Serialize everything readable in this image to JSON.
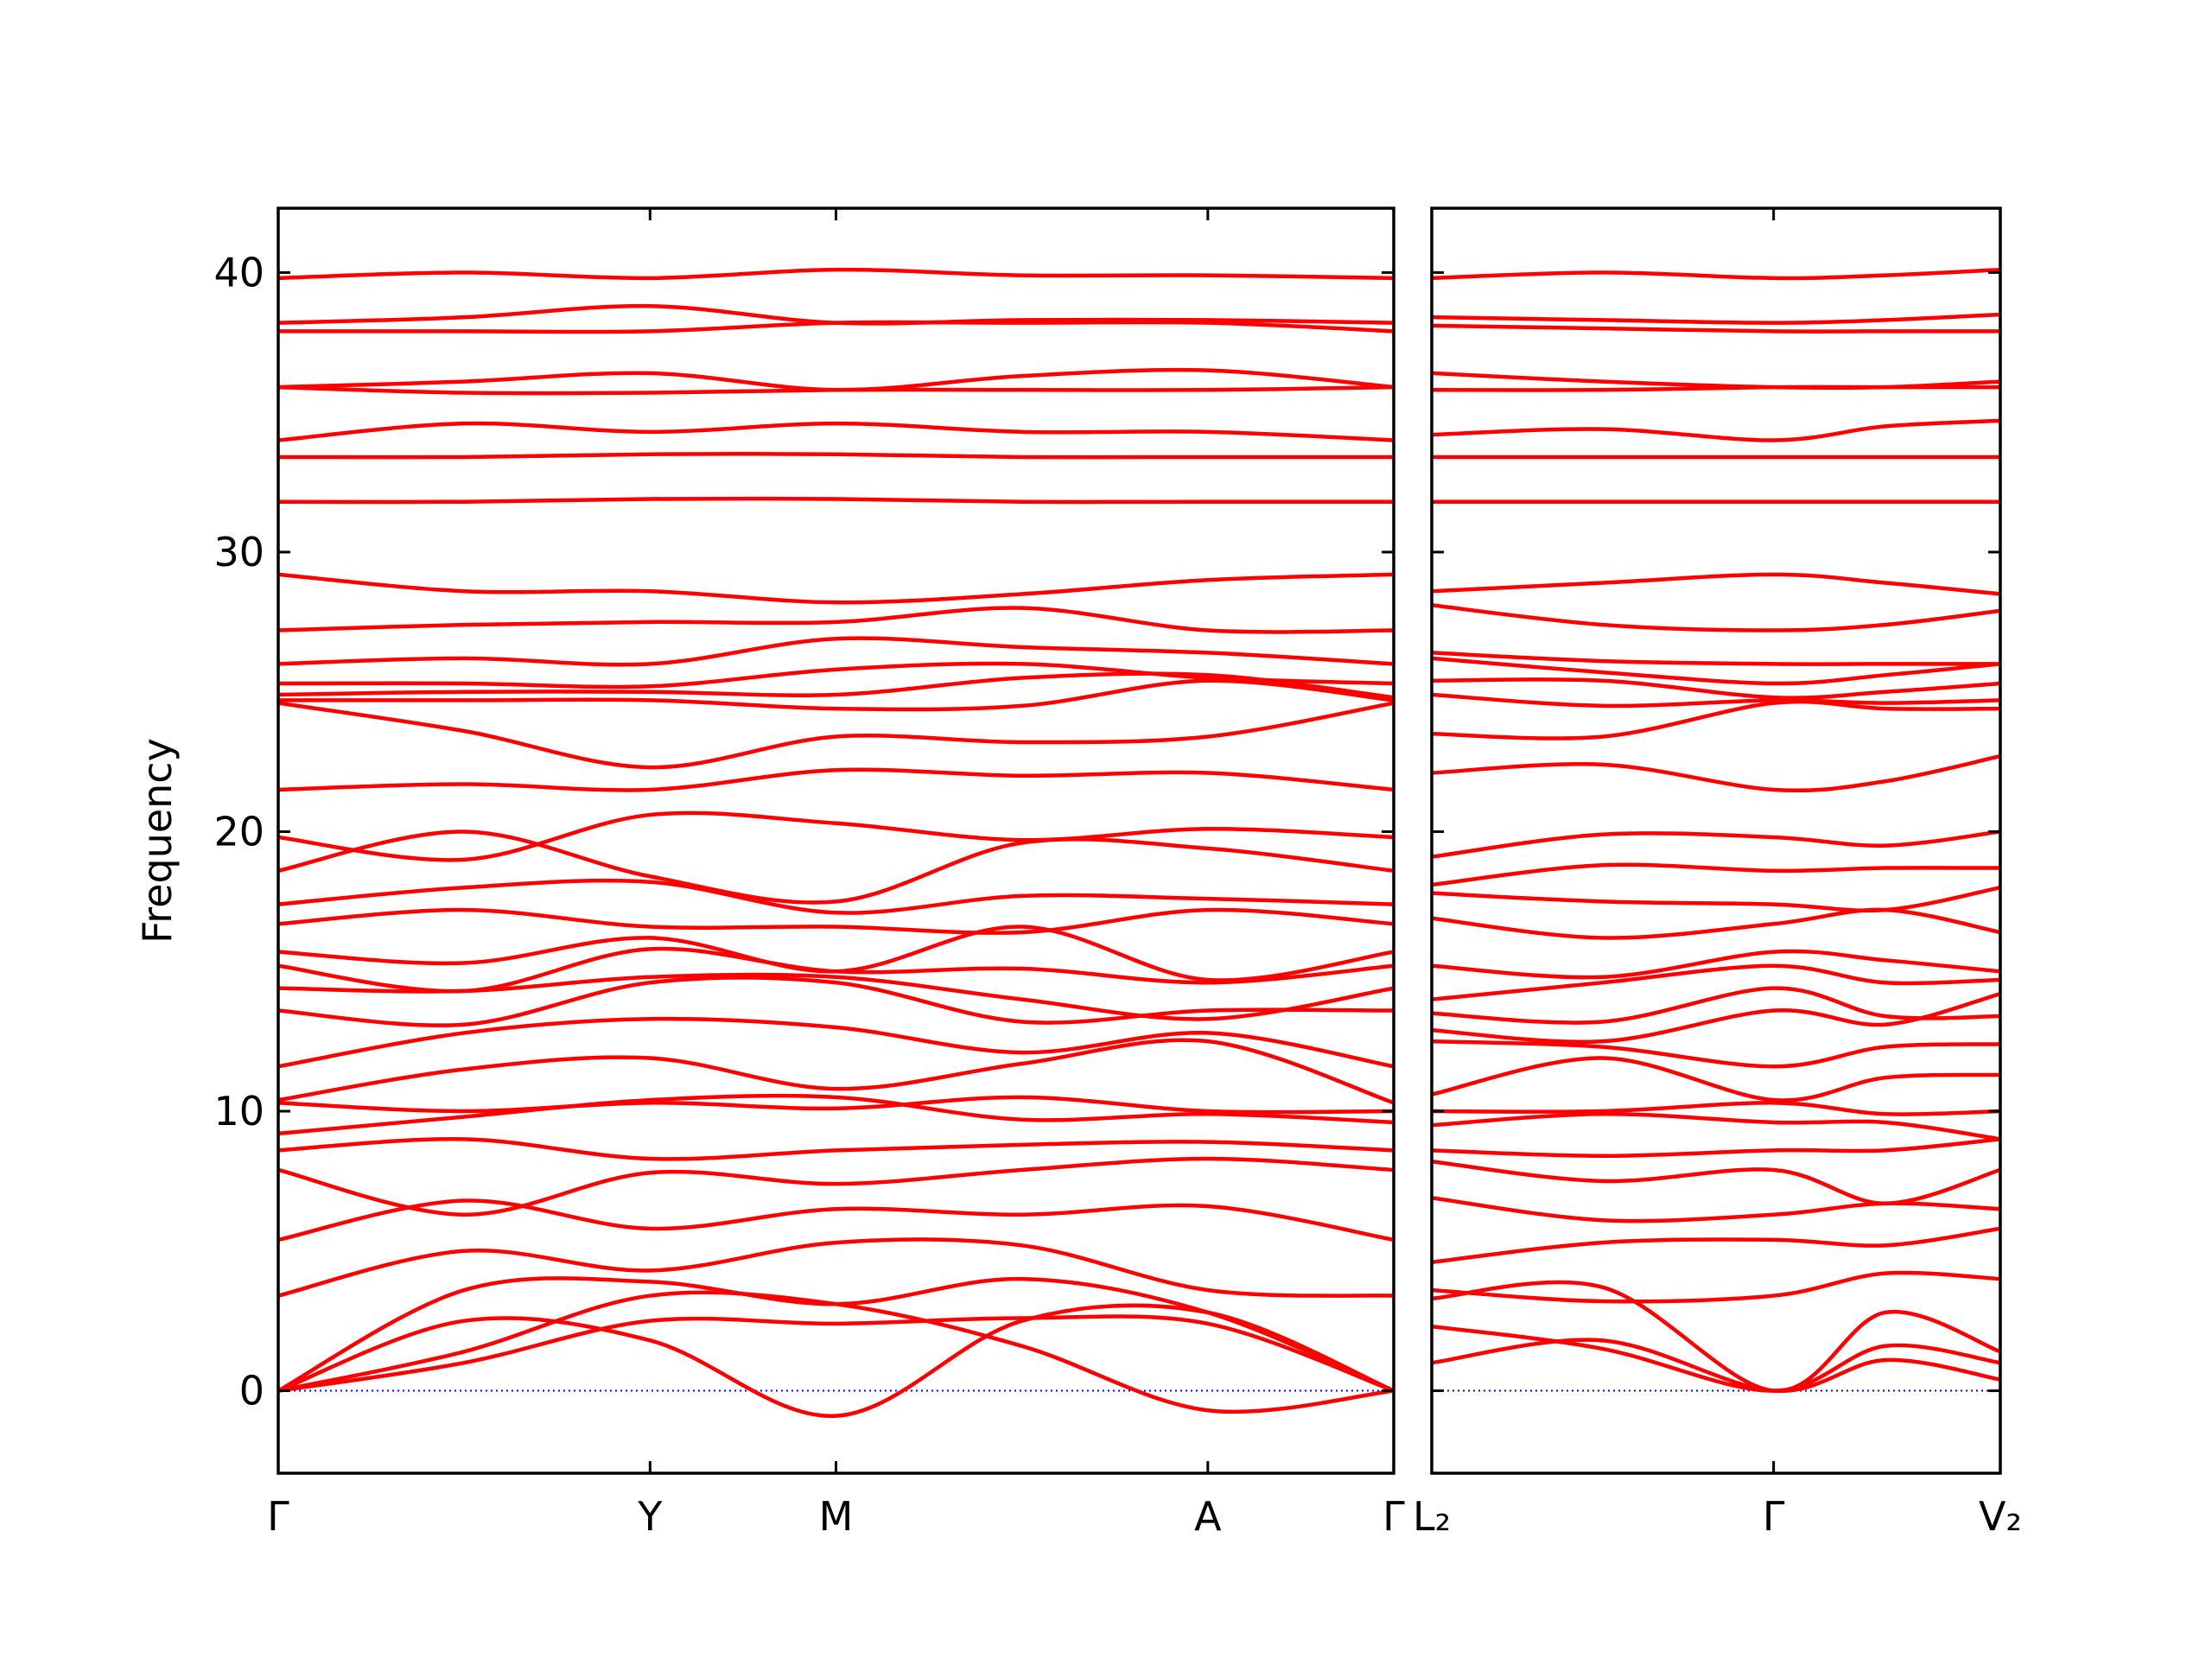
{
  "chart_data": [
    {
      "type": "line",
      "ylabel": "Frequency",
      "color": "#ff0000",
      "ylim": [
        -2.95,
        42.3
      ],
      "yticks": [
        0,
        10,
        20,
        30,
        40
      ],
      "xlim": [
        0,
        3
      ],
      "xticks": [
        {
          "value": 0,
          "label": "Γ"
        },
        {
          "value": 1,
          "label": "Y"
        },
        {
          "value": 1.5,
          "label": "M"
        },
        {
          "value": 2.5,
          "label": "A"
        },
        {
          "value": 3,
          "label": "Γ"
        }
      ],
      "reference_line": {
        "value": 0,
        "color": "#0000ff"
      },
      "x": [
        0,
        0.5,
        1,
        1.5,
        2,
        2.5,
        3
      ],
      "series": [
        {
          "values": [
            39.8,
            40.0,
            39.8,
            40.1,
            39.9,
            39.9,
            39.8
          ]
        },
        {
          "values": [
            38.2,
            38.4,
            38.8,
            38.2,
            38.3,
            38.3,
            38.2
          ]
        },
        {
          "values": [
            37.9,
            37.9,
            37.9,
            38.2,
            38.2,
            38.2,
            37.9
          ]
        },
        {
          "values": [
            35.9,
            36.1,
            36.4,
            35.8,
            36.3,
            36.5,
            35.9
          ]
        },
        {
          "values": [
            35.9,
            35.7,
            35.7,
            35.8,
            35.8,
            35.8,
            35.9
          ]
        },
        {
          "values": [
            34.0,
            34.6,
            34.3,
            34.6,
            34.3,
            34.3,
            34.0
          ]
        },
        {
          "values": [
            33.4,
            33.4,
            33.5,
            33.5,
            33.4,
            33.4,
            33.4
          ]
        },
        {
          "values": [
            31.8,
            31.8,
            31.9,
            31.9,
            31.8,
            31.8,
            31.8
          ]
        },
        {
          "values": [
            29.2,
            28.6,
            28.6,
            28.2,
            28.5,
            29.0,
            29.2
          ]
        },
        {
          "values": [
            27.2,
            27.4,
            27.5,
            27.5,
            28.0,
            27.2,
            27.2
          ]
        },
        {
          "values": [
            26.0,
            26.2,
            26.0,
            26.9,
            26.6,
            26.4,
            26.0
          ]
        },
        {
          "values": [
            25.3,
            25.3,
            25.2,
            25.8,
            26.0,
            25.5,
            25.3
          ]
        },
        {
          "values": [
            24.9,
            25.0,
            25.0,
            24.9,
            25.5,
            25.6,
            24.8
          ]
        },
        {
          "values": [
            24.7,
            24.7,
            24.7,
            24.4,
            24.5,
            25.4,
            24.7
          ]
        },
        {
          "values": [
            24.6,
            23.6,
            22.3,
            23.4,
            23.2,
            23.4,
            24.6
          ]
        },
        {
          "values": [
            21.5,
            21.7,
            21.5,
            22.2,
            22.0,
            22.1,
            21.5
          ]
        },
        {
          "values": [
            19.8,
            19.0,
            20.6,
            20.3,
            19.7,
            20.1,
            19.8
          ]
        },
        {
          "values": [
            18.6,
            20.0,
            18.4,
            17.5,
            19.6,
            19.4,
            18.6
          ]
        },
        {
          "values": [
            17.4,
            18.0,
            18.2,
            17.1,
            17.7,
            17.6,
            17.4
          ]
        },
        {
          "values": [
            16.7,
            17.2,
            16.6,
            16.6,
            16.4,
            17.2,
            16.7
          ]
        },
        {
          "values": [
            15.7,
            15.3,
            16.2,
            15.0,
            16.6,
            14.7,
            15.7
          ]
        },
        {
          "values": [
            15.2,
            14.3,
            15.8,
            15.0,
            15.1,
            14.6,
            15.2
          ]
        },
        {
          "values": [
            14.4,
            14.3,
            14.8,
            14.8,
            14.0,
            13.3,
            14.4
          ]
        },
        {
          "values": [
            13.6,
            13.1,
            14.6,
            14.6,
            13.2,
            13.6,
            13.6
          ]
        },
        {
          "values": [
            11.6,
            12.8,
            13.3,
            13.0,
            12.1,
            12.8,
            11.6
          ]
        },
        {
          "values": [
            10.4,
            11.5,
            11.9,
            10.8,
            11.7,
            12.5,
            10.3
          ]
        },
        {
          "values": [
            10.3,
            10.0,
            10.3,
            10.1,
            10.5,
            10.0,
            10.0
          ]
        },
        {
          "values": [
            9.2,
            9.8,
            10.4,
            10.5,
            9.7,
            9.9,
            9.6
          ]
        },
        {
          "values": [
            8.6,
            9.0,
            8.3,
            8.6,
            8.8,
            8.9,
            8.6
          ]
        },
        {
          "values": [
            7.9,
            6.3,
            7.8,
            7.4,
            7.9,
            8.3,
            7.9
          ]
        },
        {
          "values": [
            5.4,
            6.8,
            5.8,
            6.5,
            6.3,
            6.6,
            5.4
          ]
        },
        {
          "values": [
            3.4,
            5.0,
            4.3,
            5.3,
            5.2,
            3.6,
            3.4
          ]
        },
        {
          "values": [
            0,
            3.6,
            3.9,
            3.1,
            4.0,
            2.8,
            0
          ]
        },
        {
          "values": [
            0,
            2.5,
            1.8,
            -0.9,
            2.5,
            2.8,
            0
          ]
        },
        {
          "values": [
            0,
            1.4,
            3.4,
            3.1,
            1.6,
            -0.7,
            0
          ]
        },
        {
          "values": [
            0,
            1.0,
            2.5,
            2.4,
            2.6,
            2.4,
            0
          ]
        }
      ]
    },
    {
      "type": "line",
      "color": "#ff0000",
      "ytick_labels": false,
      "ylim": [
        -2.95,
        42.3
      ],
      "yticks": [
        0,
        10,
        20,
        30,
        40
      ],
      "xlim": [
        0,
        1.53
      ],
      "xticks": [
        {
          "value": 0,
          "label": "L₂"
        },
        {
          "value": 0.92,
          "label": "Γ"
        },
        {
          "value": 1.53,
          "label": "V₂"
        }
      ],
      "reference_line": {
        "value": 0,
        "color": "#0000ff"
      },
      "x": [
        0,
        0.46,
        0.92,
        1.22,
        1.53
      ],
      "series": [
        {
          "values": [
            39.8,
            40.0,
            39.8,
            39.9,
            40.1
          ]
        },
        {
          "values": [
            38.4,
            38.3,
            38.2,
            38.3,
            38.5
          ]
        },
        {
          "values": [
            38.1,
            38.0,
            37.9,
            37.9,
            37.9
          ]
        },
        {
          "values": [
            36.4,
            36.1,
            35.9,
            35.9,
            36.1
          ]
        },
        {
          "values": [
            35.8,
            35.8,
            35.9,
            35.9,
            35.9
          ]
        },
        {
          "values": [
            34.2,
            34.4,
            34.0,
            34.5,
            34.7
          ]
        },
        {
          "values": [
            33.4,
            33.4,
            33.4,
            33.4,
            33.4
          ]
        },
        {
          "values": [
            31.8,
            31.8,
            31.8,
            31.8,
            31.8
          ]
        },
        {
          "values": [
            28.6,
            28.9,
            29.2,
            28.9,
            28.5
          ]
        },
        {
          "values": [
            28.1,
            27.4,
            27.2,
            27.4,
            27.9
          ]
        },
        {
          "values": [
            26.4,
            26.1,
            26.0,
            26.0,
            26.0
          ]
        },
        {
          "values": [
            26.2,
            25.7,
            25.3,
            25.6,
            26.0
          ]
        },
        {
          "values": [
            25.4,
            25.4,
            24.8,
            25.0,
            25.3
          ]
        },
        {
          "values": [
            24.9,
            24.5,
            24.7,
            24.6,
            24.7
          ]
        },
        {
          "values": [
            23.5,
            23.4,
            24.6,
            24.4,
            24.4
          ]
        },
        {
          "values": [
            22.1,
            22.4,
            21.5,
            21.8,
            22.7
          ]
        },
        {
          "values": [
            19.1,
            19.9,
            19.8,
            19.5,
            20.0
          ]
        },
        {
          "values": [
            18.1,
            18.8,
            18.6,
            18.7,
            18.7
          ]
        },
        {
          "values": [
            17.8,
            17.5,
            17.4,
            17.2,
            18.0
          ]
        },
        {
          "values": [
            16.9,
            16.2,
            16.7,
            17.2,
            16.4
          ]
        },
        {
          "values": [
            15.2,
            14.8,
            15.7,
            15.4,
            15.0
          ]
        },
        {
          "values": [
            14.0,
            14.6,
            15.2,
            14.6,
            14.7
          ]
        },
        {
          "values": [
            13.5,
            13.2,
            14.4,
            13.4,
            13.4
          ]
        },
        {
          "values": [
            12.9,
            12.5,
            13.6,
            13.1,
            14.2
          ]
        },
        {
          "values": [
            12.5,
            12.3,
            11.6,
            12.3,
            12.4
          ]
        },
        {
          "values": [
            10.6,
            11.9,
            10.4,
            11.2,
            11.3
          ]
        },
        {
          "values": [
            10.0,
            10.0,
            10.3,
            9.9,
            10.0
          ]
        },
        {
          "values": [
            9.5,
            9.9,
            9.6,
            9.6,
            9.0
          ]
        },
        {
          "values": [
            8.6,
            8.4,
            8.6,
            8.6,
            9.0
          ]
        },
        {
          "values": [
            8.2,
            7.5,
            7.9,
            6.7,
            7.9
          ]
        },
        {
          "values": [
            6.9,
            6.1,
            6.3,
            6.7,
            6.5
          ]
        },
        {
          "values": [
            4.6,
            5.3,
            5.4,
            5.2,
            5.8
          ]
        },
        {
          "values": [
            3.6,
            3.2,
            3.4,
            4.2,
            4.0
          ]
        },
        {
          "values": [
            3.3,
            3.7,
            0,
            2.8,
            1.4
          ]
        },
        {
          "values": [
            2.3,
            1.5,
            0,
            1.6,
            1.0
          ]
        },
        {
          "values": [
            1.0,
            1.8,
            0,
            1.1,
            0.4
          ]
        }
      ]
    }
  ]
}
